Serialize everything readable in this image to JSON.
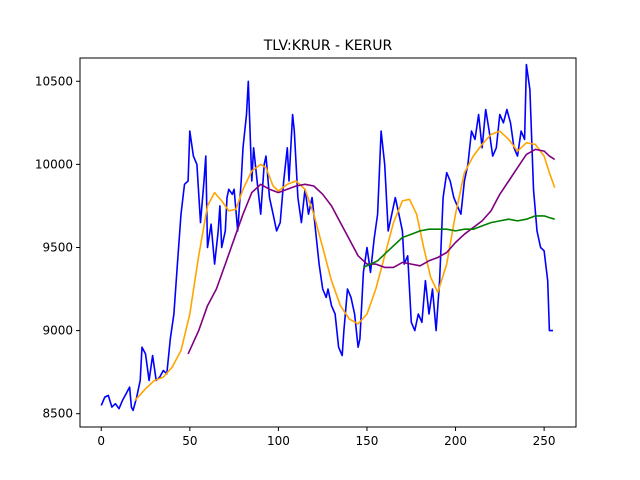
{
  "chart_data": {
    "type": "line",
    "title": "TLV:KRUR - KERUR",
    "xlabel": "",
    "ylabel": "",
    "xlim": [
      -12,
      268
    ],
    "ylim": [
      8420,
      10640
    ],
    "x_ticks": [
      0,
      50,
      100,
      150,
      200,
      250
    ],
    "y_ticks": [
      8500,
      9000,
      9500,
      10000,
      10500
    ],
    "grid": false,
    "series": [
      {
        "name": "",
        "color": "#0000ff",
        "points": [
          [
            0,
            8550
          ],
          [
            2,
            8600
          ],
          [
            4,
            8610
          ],
          [
            6,
            8540
          ],
          [
            8,
            8560
          ],
          [
            10,
            8530
          ],
          [
            12,
            8580
          ],
          [
            14,
            8620
          ],
          [
            16,
            8660
          ],
          [
            17,
            8540
          ],
          [
            18,
            8520
          ],
          [
            20,
            8600
          ],
          [
            22,
            8700
          ],
          [
            23,
            8900
          ],
          [
            25,
            8860
          ],
          [
            27,
            8700
          ],
          [
            29,
            8850
          ],
          [
            31,
            8700
          ],
          [
            33,
            8720
          ],
          [
            35,
            8760
          ],
          [
            37,
            8740
          ],
          [
            39,
            8950
          ],
          [
            41,
            9100
          ],
          [
            43,
            9400
          ],
          [
            45,
            9700
          ],
          [
            47,
            9880
          ],
          [
            49,
            9900
          ],
          [
            50,
            10200
          ],
          [
            52,
            10050
          ],
          [
            54,
            10000
          ],
          [
            56,
            9650
          ],
          [
            58,
            9900
          ],
          [
            59,
            10050
          ],
          [
            60,
            9500
          ],
          [
            62,
            9640
          ],
          [
            64,
            9400
          ],
          [
            66,
            9600
          ],
          [
            67,
            9750
          ],
          [
            68,
            9500
          ],
          [
            70,
            9600
          ],
          [
            71,
            9800
          ],
          [
            72,
            9850
          ],
          [
            74,
            9820
          ],
          [
            75,
            9850
          ],
          [
            77,
            9600
          ],
          [
            79,
            9900
          ],
          [
            80,
            10100
          ],
          [
            82,
            10300
          ],
          [
            83,
            10500
          ],
          [
            85,
            9900
          ],
          [
            86,
            10100
          ],
          [
            88,
            9900
          ],
          [
            90,
            9700
          ],
          [
            92,
            10000
          ],
          [
            93,
            10050
          ],
          [
            95,
            9800
          ],
          [
            97,
            9700
          ],
          [
            99,
            9600
          ],
          [
            101,
            9650
          ],
          [
            103,
            9900
          ],
          [
            105,
            10100
          ],
          [
            106,
            9900
          ],
          [
            108,
            10300
          ],
          [
            109,
            10200
          ],
          [
            111,
            9800
          ],
          [
            113,
            9650
          ],
          [
            115,
            9850
          ],
          [
            117,
            9700
          ],
          [
            119,
            9800
          ],
          [
            121,
            9600
          ],
          [
            123,
            9400
          ],
          [
            125,
            9250
          ],
          [
            127,
            9200
          ],
          [
            128,
            9250
          ],
          [
            130,
            9150
          ],
          [
            132,
            9100
          ],
          [
            134,
            8900
          ],
          [
            136,
            8850
          ],
          [
            137,
            9000
          ],
          [
            139,
            9250
          ],
          [
            141,
            9200
          ],
          [
            143,
            9100
          ],
          [
            145,
            8900
          ],
          [
            146,
            8950
          ],
          [
            148,
            9350
          ],
          [
            150,
            9500
          ],
          [
            152,
            9350
          ],
          [
            154,
            9550
          ],
          [
            156,
            9700
          ],
          [
            158,
            10200
          ],
          [
            160,
            10000
          ],
          [
            162,
            9600
          ],
          [
            164,
            9700
          ],
          [
            166,
            9800
          ],
          [
            168,
            9700
          ],
          [
            170,
            9600
          ],
          [
            171,
            9400
          ],
          [
            173,
            9450
          ],
          [
            175,
            9050
          ],
          [
            177,
            9000
          ],
          [
            179,
            9100
          ],
          [
            181,
            9050
          ],
          [
            183,
            9300
          ],
          [
            185,
            9100
          ],
          [
            187,
            9250
          ],
          [
            189,
            9000
          ],
          [
            191,
            9300
          ],
          [
            193,
            9800
          ],
          [
            195,
            9950
          ],
          [
            197,
            9900
          ],
          [
            199,
            9800
          ],
          [
            201,
            9750
          ],
          [
            203,
            9700
          ],
          [
            205,
            9900
          ],
          [
            207,
            10000
          ],
          [
            209,
            10200
          ],
          [
            211,
            10150
          ],
          [
            213,
            10300
          ],
          [
            215,
            10100
          ],
          [
            217,
            10330
          ],
          [
            219,
            10200
          ],
          [
            221,
            10050
          ],
          [
            223,
            10100
          ],
          [
            225,
            10300
          ],
          [
            227,
            10250
          ],
          [
            229,
            10330
          ],
          [
            231,
            10250
          ],
          [
            233,
            10100
          ],
          [
            235,
            10050
          ],
          [
            237,
            10200
          ],
          [
            239,
            10150
          ],
          [
            240,
            10600
          ],
          [
            242,
            10450
          ],
          [
            244,
            9850
          ],
          [
            246,
            9600
          ],
          [
            248,
            9500
          ],
          [
            250,
            9480
          ],
          [
            252,
            9300
          ],
          [
            253,
            9000
          ],
          [
            255,
            9000
          ]
        ]
      },
      {
        "name": "",
        "color": "#ffa500",
        "points": [
          [
            19,
            8580
          ],
          [
            25,
            8650
          ],
          [
            30,
            8700
          ],
          [
            35,
            8720
          ],
          [
            40,
            8780
          ],
          [
            45,
            8880
          ],
          [
            50,
            9100
          ],
          [
            55,
            9450
          ],
          [
            60,
            9750
          ],
          [
            64,
            9830
          ],
          [
            68,
            9780
          ],
          [
            72,
            9720
          ],
          [
            76,
            9730
          ],
          [
            80,
            9850
          ],
          [
            85,
            9960
          ],
          [
            90,
            10000
          ],
          [
            93,
            9980
          ],
          [
            97,
            9870
          ],
          [
            100,
            9840
          ],
          [
            105,
            9880
          ],
          [
            110,
            9900
          ],
          [
            115,
            9850
          ],
          [
            120,
            9700
          ],
          [
            125,
            9500
          ],
          [
            130,
            9300
          ],
          [
            135,
            9150
          ],
          [
            140,
            9070
          ],
          [
            145,
            9040
          ],
          [
            150,
            9100
          ],
          [
            155,
            9250
          ],
          [
            160,
            9450
          ],
          [
            165,
            9650
          ],
          [
            170,
            9780
          ],
          [
            174,
            9790
          ],
          [
            178,
            9700
          ],
          [
            182,
            9500
          ],
          [
            186,
            9320
          ],
          [
            190,
            9230
          ],
          [
            195,
            9400
          ],
          [
            200,
            9700
          ],
          [
            205,
            9950
          ],
          [
            210,
            10050
          ],
          [
            215,
            10120
          ],
          [
            220,
            10180
          ],
          [
            225,
            10200
          ],
          [
            230,
            10150
          ],
          [
            235,
            10080
          ],
          [
            240,
            10130
          ],
          [
            245,
            10120
          ],
          [
            250,
            10050
          ],
          [
            253,
            9950
          ],
          [
            256,
            9860
          ]
        ]
      },
      {
        "name": "",
        "color": "#800080",
        "points": [
          [
            49,
            8860
          ],
          [
            55,
            9000
          ],
          [
            60,
            9150
          ],
          [
            65,
            9250
          ],
          [
            70,
            9400
          ],
          [
            75,
            9550
          ],
          [
            80,
            9700
          ],
          [
            85,
            9830
          ],
          [
            90,
            9880
          ],
          [
            95,
            9850
          ],
          [
            100,
            9830
          ],
          [
            105,
            9850
          ],
          [
            110,
            9870
          ],
          [
            115,
            9880
          ],
          [
            120,
            9870
          ],
          [
            125,
            9820
          ],
          [
            130,
            9750
          ],
          [
            135,
            9650
          ],
          [
            140,
            9550
          ],
          [
            145,
            9450
          ],
          [
            150,
            9400
          ],
          [
            155,
            9400
          ],
          [
            160,
            9380
          ],
          [
            165,
            9380
          ],
          [
            170,
            9410
          ],
          [
            175,
            9400
          ],
          [
            180,
            9390
          ],
          [
            185,
            9420
          ],
          [
            190,
            9440
          ],
          [
            195,
            9470
          ],
          [
            200,
            9530
          ],
          [
            205,
            9580
          ],
          [
            210,
            9620
          ],
          [
            215,
            9660
          ],
          [
            220,
            9720
          ],
          [
            225,
            9820
          ],
          [
            230,
            9900
          ],
          [
            235,
            9980
          ],
          [
            240,
            10060
          ],
          [
            245,
            10090
          ],
          [
            250,
            10080
          ],
          [
            253,
            10050
          ],
          [
            256,
            10030
          ]
        ]
      },
      {
        "name": "",
        "color": "#008000",
        "points": [
          [
            148,
            9380
          ],
          [
            152,
            9400
          ],
          [
            156,
            9420
          ],
          [
            160,
            9460
          ],
          [
            165,
            9510
          ],
          [
            170,
            9560
          ],
          [
            175,
            9580
          ],
          [
            180,
            9600
          ],
          [
            185,
            9610
          ],
          [
            190,
            9610
          ],
          [
            195,
            9610
          ],
          [
            200,
            9600
          ],
          [
            205,
            9610
          ],
          [
            210,
            9610
          ],
          [
            215,
            9630
          ],
          [
            220,
            9650
          ],
          [
            225,
            9660
          ],
          [
            230,
            9670
          ],
          [
            235,
            9660
          ],
          [
            240,
            9670
          ],
          [
            245,
            9690
          ],
          [
            250,
            9690
          ],
          [
            253,
            9680
          ],
          [
            256,
            9670
          ]
        ]
      }
    ]
  }
}
